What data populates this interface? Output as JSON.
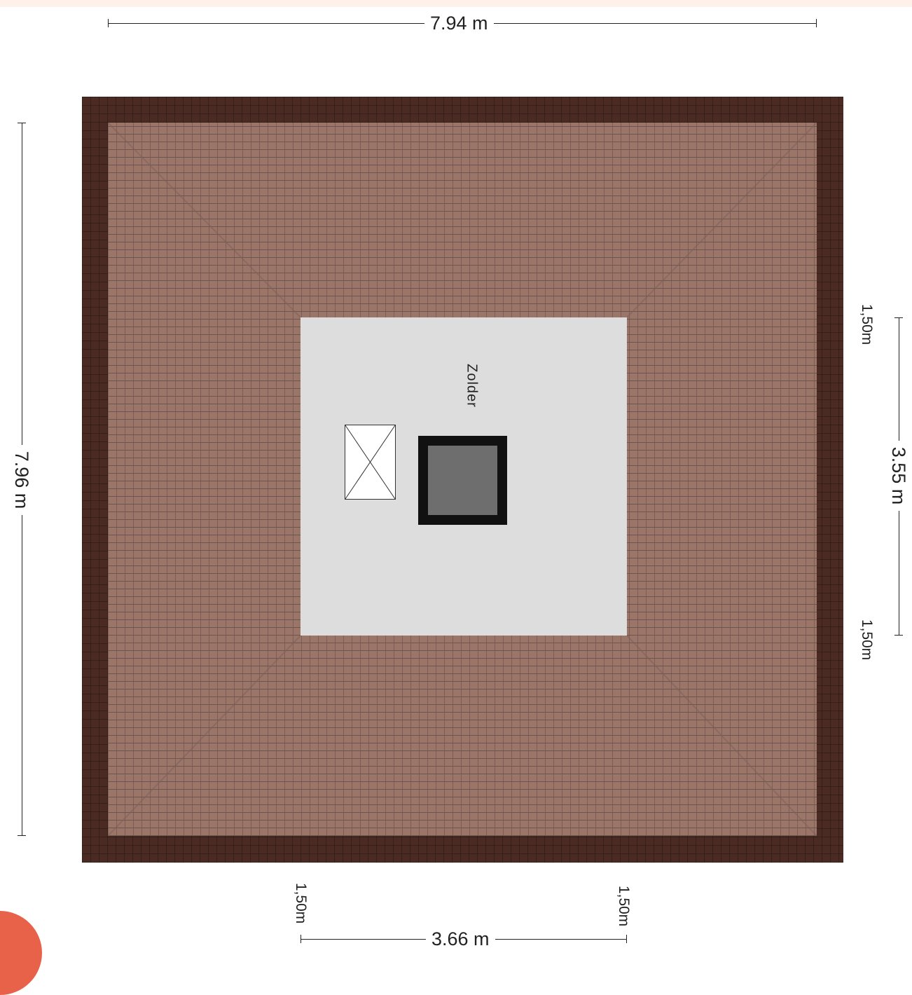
{
  "plan": {
    "room_label": "Zolder",
    "dimensions": {
      "top_width": "7.94 m",
      "left_height": "7.96 m",
      "right_room_height": "3.55 m",
      "bottom_room_width": "3.66 m",
      "right_offset_top": "1,50m",
      "right_offset_bottom": "1,50m",
      "bottom_offset_left": "1,50m",
      "bottom_offset_right": "1,50m"
    }
  },
  "colors": {
    "top_band": "#fdf1ea",
    "roof_edge": "#4a2a22",
    "roof_tiles": "#9c7569",
    "tile_lines": "#6b554f",
    "room_fill": "#dddddd",
    "corner_badge": "#e8624a"
  }
}
